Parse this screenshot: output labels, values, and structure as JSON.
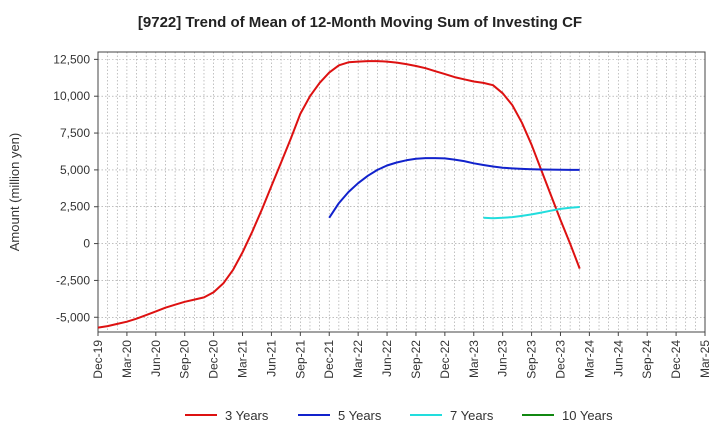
{
  "chart_data": {
    "type": "line",
    "title": "[9722]  Trend of Mean of 12-Month Moving Sum of Investing CF",
    "ylabel": "Amount (million yen)",
    "xlabel": "",
    "ylim": [
      -6000,
      13000
    ],
    "yticks": [
      12500,
      10000,
      7500,
      5000,
      2500,
      0,
      -2500,
      -5000
    ],
    "ytick_labels": [
      "12,500",
      "10,000",
      "7,500",
      "5,000",
      "2,500",
      "0",
      "-2,500",
      "-5,000"
    ],
    "xtick_labels": [
      "Dec-19",
      "Mar-20",
      "Jun-20",
      "Sep-20",
      "Dec-20",
      "Mar-21",
      "Jun-21",
      "Sep-21",
      "Dec-21",
      "Mar-22",
      "Jun-22",
      "Sep-22",
      "Dec-22",
      "Mar-23",
      "Jun-23",
      "Sep-23",
      "Dec-23",
      "Mar-24",
      "Jun-24",
      "Sep-24",
      "Dec-24",
      "Mar-25"
    ],
    "grid": true,
    "legend_position": "bottom",
    "series": [
      {
        "name": "3 Years",
        "color": "#dd1111",
        "points": [
          [
            0,
            -5700
          ],
          [
            1,
            -5600
          ],
          [
            2,
            -5450
          ],
          [
            3,
            -5300
          ],
          [
            4,
            -5100
          ],
          [
            5,
            -4850
          ],
          [
            6,
            -4600
          ],
          [
            7,
            -4350
          ],
          [
            8,
            -4150
          ],
          [
            9,
            -3950
          ],
          [
            10,
            -3800
          ],
          [
            11,
            -3650
          ],
          [
            12,
            -3300
          ],
          [
            13,
            -2700
          ],
          [
            14,
            -1800
          ],
          [
            15,
            -600
          ],
          [
            16,
            800
          ],
          [
            17,
            2300
          ],
          [
            18,
            3900
          ],
          [
            19,
            5500
          ],
          [
            20,
            7100
          ],
          [
            21,
            8800
          ],
          [
            22,
            10000
          ],
          [
            23,
            10900
          ],
          [
            24,
            11600
          ],
          [
            25,
            12100
          ],
          [
            26,
            12300
          ],
          [
            27,
            12350
          ],
          [
            28,
            12380
          ],
          [
            29,
            12380
          ],
          [
            30,
            12350
          ],
          [
            31,
            12280
          ],
          [
            32,
            12180
          ],
          [
            33,
            12050
          ],
          [
            34,
            11900
          ],
          [
            35,
            11700
          ],
          [
            36,
            11500
          ],
          [
            37,
            11300
          ],
          [
            38,
            11150
          ],
          [
            39,
            11000
          ],
          [
            40,
            10900
          ],
          [
            41,
            10750
          ],
          [
            42,
            10200
          ],
          [
            43,
            9400
          ],
          [
            44,
            8200
          ],
          [
            45,
            6700
          ],
          [
            46,
            5000
          ],
          [
            47,
            3300
          ],
          [
            48,
            1600
          ],
          [
            49,
            0
          ],
          [
            50,
            -1700
          ]
        ]
      },
      {
        "name": "5 Years",
        "color": "#1122cc",
        "points": [
          [
            24,
            1750
          ],
          [
            25,
            2750
          ],
          [
            26,
            3500
          ],
          [
            27,
            4100
          ],
          [
            28,
            4600
          ],
          [
            29,
            5000
          ],
          [
            30,
            5300
          ],
          [
            31,
            5500
          ],
          [
            32,
            5650
          ],
          [
            33,
            5750
          ],
          [
            34,
            5800
          ],
          [
            35,
            5800
          ],
          [
            36,
            5780
          ],
          [
            37,
            5700
          ],
          [
            38,
            5600
          ],
          [
            39,
            5450
          ],
          [
            40,
            5330
          ],
          [
            41,
            5230
          ],
          [
            42,
            5150
          ],
          [
            43,
            5100
          ],
          [
            44,
            5070
          ],
          [
            45,
            5050
          ],
          [
            46,
            5030
          ],
          [
            47,
            5020
          ],
          [
            48,
            5010
          ],
          [
            49,
            5000
          ],
          [
            50,
            5000
          ]
        ]
      },
      {
        "name": "7 Years",
        "color": "#22dddd",
        "points": [
          [
            40,
            1750
          ],
          [
            41,
            1720
          ],
          [
            42,
            1750
          ],
          [
            43,
            1800
          ],
          [
            44,
            1880
          ],
          [
            45,
            1980
          ],
          [
            46,
            2100
          ],
          [
            47,
            2230
          ],
          [
            48,
            2350
          ],
          [
            49,
            2430
          ],
          [
            50,
            2480
          ]
        ]
      },
      {
        "name": "10 Years",
        "color": "#118811",
        "points": []
      }
    ]
  }
}
